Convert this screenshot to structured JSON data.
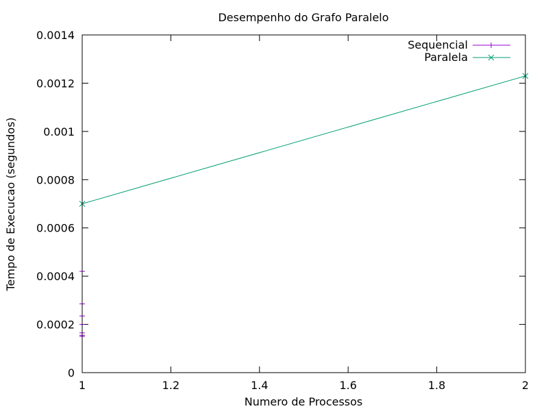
{
  "chart_data": {
    "type": "line",
    "title": "Desempenho do Grafo Paralelo",
    "xlabel": "Numero de Processos",
    "ylabel": "Tempo de Execucao (segundos)",
    "xlim": [
      1,
      2
    ],
    "ylim": [
      0,
      0.0014
    ],
    "x_ticks": [
      {
        "value": 1,
        "label": "1"
      },
      {
        "value": 1.2,
        "label": "1.2"
      },
      {
        "value": 1.4,
        "label": "1.4"
      },
      {
        "value": 1.6,
        "label": "1.6"
      },
      {
        "value": 1.8,
        "label": "1.8"
      },
      {
        "value": 2,
        "label": "2"
      }
    ],
    "y_ticks": [
      {
        "value": 0,
        "label": "0"
      },
      {
        "value": 0.0002,
        "label": "0.0002"
      },
      {
        "value": 0.0004,
        "label": "0.0004"
      },
      {
        "value": 0.0006,
        "label": "0.0006"
      },
      {
        "value": 0.0008,
        "label": "0.0008"
      },
      {
        "value": 0.001,
        "label": "0.001"
      },
      {
        "value": 0.0012,
        "label": "0.0012"
      },
      {
        "value": 0.0014,
        "label": "0.0014"
      }
    ],
    "grid": false,
    "legend_position": "top-right",
    "series": [
      {
        "name": "Sequencial",
        "color": "#9400d3",
        "marker": "plus",
        "x": [
          1,
          1,
          1,
          1,
          1,
          1,
          1
        ],
        "y": [
          0.00042,
          0.000285,
          0.000235,
          0.0002,
          0.000165,
          0.000155,
          0.00015
        ]
      },
      {
        "name": "Paralela",
        "color": "#009e73",
        "marker": "cross",
        "x": [
          1,
          2
        ],
        "y": [
          0.0007,
          0.00123
        ]
      }
    ]
  }
}
